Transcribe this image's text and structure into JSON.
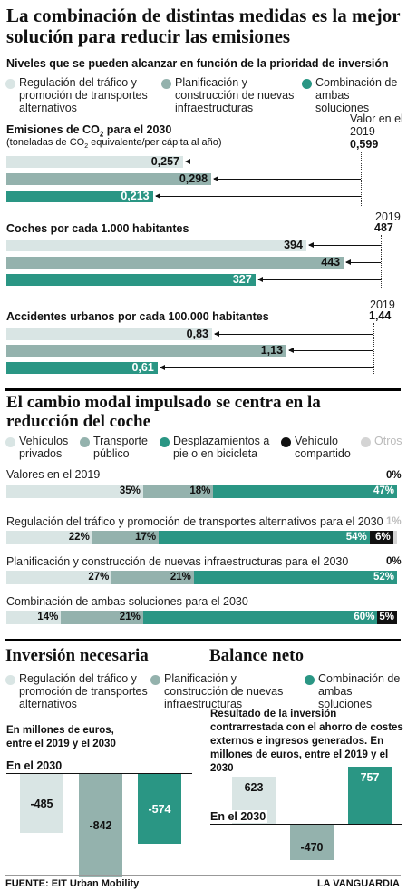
{
  "title": "La combinación de distintas medidas es la mejor solución para reducir las emisiones",
  "subtitle": "Niveles que se pueden alcanzar en función de la prioridad de inversión",
  "legend1": [
    "Regulación del tráfico y promoción de transportes alternativos",
    "Planificación y construcción de nuevas infraestructuras",
    "Combinación de ambas soluciones"
  ],
  "colors": {
    "light": "#d9e5e4",
    "mid": "#94b2ad",
    "dark": "#2a9684",
    "black": "#111111",
    "otros": "#d4d4d4"
  },
  "section2_title": "El cambio modal impulsado se centra en la reducción del coche",
  "modal_legend": [
    "Vehículos privados",
    "Transporte público",
    "Desplazamientos a pie o en bicicleta",
    "Vehículo compartido",
    "Otros"
  ],
  "investment": {
    "title": "Inversión necesaria",
    "desc": "En millones de euros, entre el 2019 y el 2030",
    "axis": "En el 2030"
  },
  "balance": {
    "title": "Balance neto",
    "desc": "Resultado de la inversión contrarrestada con el ahorro de costes externos e ingresos generados. En millones de euros, entre el 2019 y el 2030",
    "axis": "En el 2030"
  },
  "footer": {
    "source": "FUENTE: EIT Urban Mobility",
    "brand": "LA VANGUARDIA"
  },
  "chart_data": [
    {
      "type": "bar",
      "title": "Emisiones de CO2 para el 2030",
      "subtitle": "(toneladas de CO2 equivalente/per cápita al año)",
      "reference_label": "Valor en el 2019",
      "reference": 0.599,
      "reference_text": "0,599",
      "categories": [
        "Regulación del tráfico y promoción de transportes alternativos",
        "Planificación y construcción de nuevas infraestructuras",
        "Combinación de ambas soluciones"
      ],
      "values": [
        0.257,
        0.298,
        0.213
      ],
      "labels": [
        "0,257",
        "0,298",
        "0,213"
      ]
    },
    {
      "type": "bar",
      "title": "Coches por cada 1.000 habitantes",
      "reference_label": "2019",
      "reference": 487,
      "reference_text": "487",
      "values": [
        394,
        443,
        327
      ],
      "labels": [
        "394",
        "443",
        "327"
      ]
    },
    {
      "type": "bar",
      "title": "Accidentes urbanos por cada 100.000 habitantes",
      "reference_label": "2019",
      "reference": 1.44,
      "reference_text": "1,44",
      "values": [
        0.83,
        1.13,
        0.61
      ],
      "labels": [
        "0,83",
        "1,13",
        "0,61"
      ]
    },
    {
      "type": "bar",
      "stacked": true,
      "rows": [
        {
          "label": "Valores en el 2019",
          "values": [
            35,
            18,
            47,
            0,
            0
          ],
          "labels": [
            "35%",
            "18%",
            "47%",
            "0%",
            ""
          ]
        },
        {
          "label": "Regulación del tráfico y promoción de transportes alternativos para el 2030",
          "values": [
            22,
            17,
            54,
            6,
            1
          ],
          "labels": [
            "22%",
            "17%",
            "54%",
            "6%",
            "1%"
          ]
        },
        {
          "label": "Planificación y construcción de nuevas infraestructuras para el 2030",
          "values": [
            27,
            21,
            52,
            0,
            0
          ],
          "labels": [
            "27%",
            "21%",
            "52%",
            "0%",
            ""
          ]
        },
        {
          "label": "Combinación de ambas soluciones para el 2030",
          "values": [
            14,
            21,
            60,
            5,
            0
          ],
          "labels": [
            "14%",
            "21%",
            "60%",
            "5%",
            ""
          ]
        }
      ]
    },
    {
      "type": "bar",
      "title": "Inversión necesaria",
      "values": [
        -485,
        -842,
        -574
      ],
      "labels": [
        "-485",
        "-842",
        "-574"
      ]
    },
    {
      "type": "bar",
      "title": "Balance neto",
      "values": [
        623,
        -470,
        757
      ],
      "labels": [
        "623",
        "-470",
        "757"
      ]
    }
  ]
}
